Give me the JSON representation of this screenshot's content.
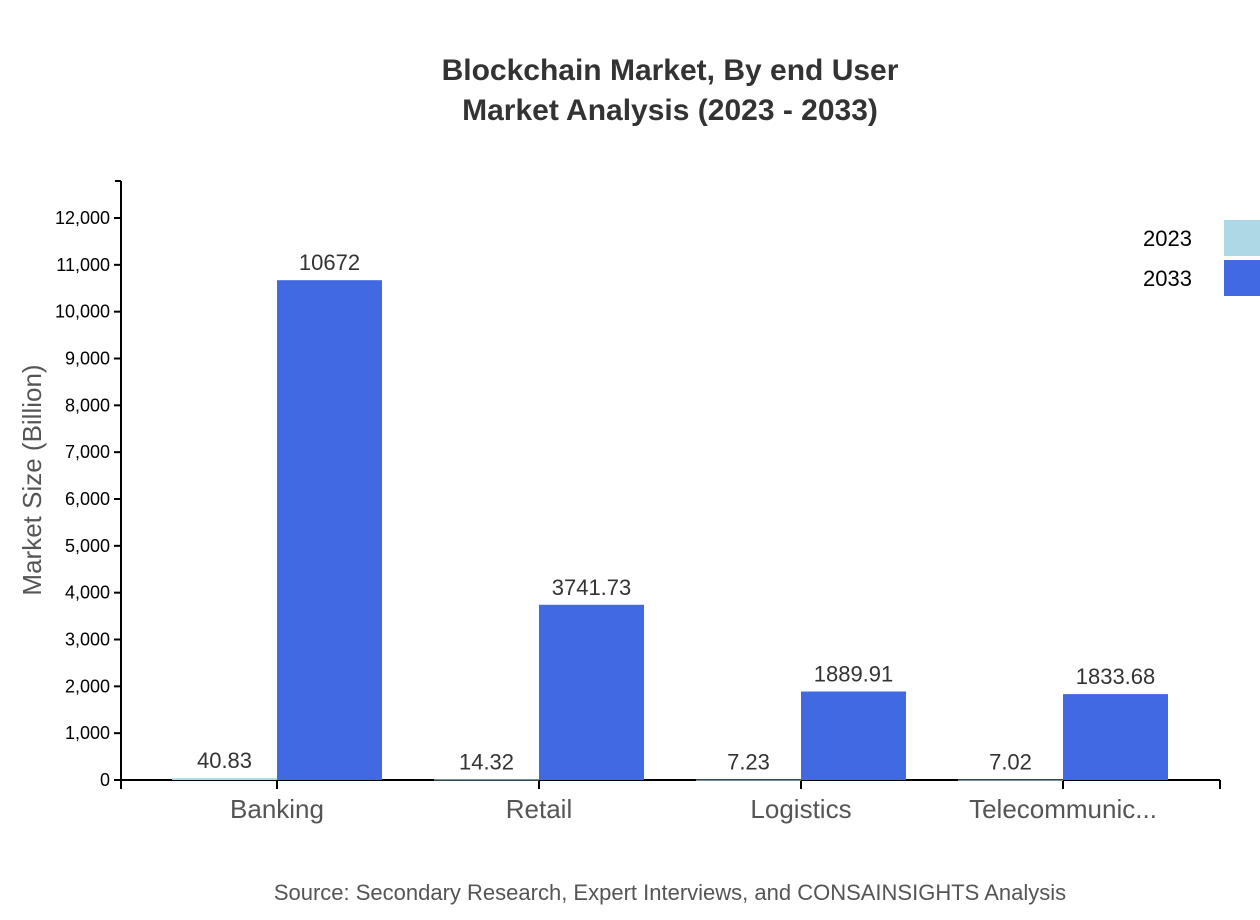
{
  "chart_data": {
    "type": "bar",
    "title": [
      "Blockchain Market, By end User",
      "Market Analysis (2023 - 2033)"
    ],
    "xlabel": "",
    "ylabel": "Market Size (Billion)",
    "ylim": [
      0,
      12800
    ],
    "yticks": [
      0,
      1000,
      2000,
      3000,
      4000,
      5000,
      6000,
      7000,
      8000,
      9000,
      10000,
      11000,
      12000
    ],
    "ytick_labels": [
      "0",
      "1,000",
      "2,000",
      "3,000",
      "4,000",
      "5,000",
      "6,000",
      "7,000",
      "8,000",
      "9,000",
      "10,000",
      "11,000",
      "12,000"
    ],
    "categories": [
      "Banking",
      "Retail",
      "Logistics",
      "Telecommunic..."
    ],
    "series": [
      {
        "name": "2023",
        "color": "#add8e6",
        "values": [
          40.83,
          14.32,
          7.23,
          7.02
        ],
        "labels": [
          "40.83",
          "14.32",
          "7.23",
          "7.02"
        ]
      },
      {
        "name": "2033",
        "color": "#4169e1",
        "values": [
          10672,
          3741.73,
          1889.91,
          1833.68
        ],
        "labels": [
          "10672",
          "3741.73",
          "1889.91",
          "1833.68"
        ]
      }
    ],
    "legend_position": "top-right",
    "grid": false,
    "source": "Source: Secondary Research, Expert Interviews, and CONSAINSIGHTS Analysis"
  }
}
